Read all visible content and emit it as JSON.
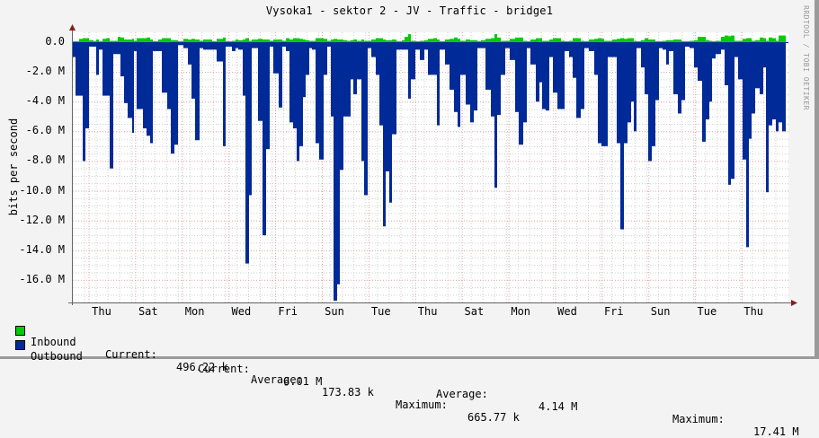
{
  "title": "Vysoka1 - sektor 2 - JV - Traffic - bridge1",
  "watermark": "RRDTOOL / TOBI OETIKER",
  "y_axis_label": "bits per second",
  "colors": {
    "inbound": "#00cc00",
    "outbound": "#002a97",
    "background": "#f3f3f3",
    "canvas": "#ffffff",
    "major_grid": "#e0a0a0",
    "minor_grid": "#cfcfcf",
    "axis": "#666666",
    "arrow": "#8b1a1a"
  },
  "y_ticks": [
    "0.0",
    "-2.0 M",
    "-4.0 M",
    "-6.0 M",
    "-8.0 M",
    "-10.0 M",
    "-12.0 M",
    "-14.0 M",
    "-16.0 M"
  ],
  "x_ticks": [
    "Thu",
    "Sat",
    "Mon",
    "Wed",
    "Fri",
    "Sun",
    "Tue",
    "Thu",
    "Sat",
    "Mon",
    "Wed",
    "Fri",
    "Sun",
    "Tue",
    "Thu"
  ],
  "legend": {
    "inbound": {
      "label": "Inbound",
      "current_label": "Current:",
      "current": "496.22 k",
      "average_label": "Average:",
      "average": "173.83 k",
      "maximum_label": "Maximum:",
      "maximum": "665.77 k"
    },
    "outbound": {
      "label": "Outbound",
      "current_label": "Current:",
      "current": "6.01 M",
      "average_label": "Average:",
      "average": "4.14 M",
      "maximum_label": "Maximum:",
      "maximum": "17.41 M"
    }
  },
  "chart_data": {
    "type": "area",
    "title": "Vysoka1 - sektor 2 - JV - Traffic - bridge1",
    "xlabel": "",
    "ylabel": "bits per second",
    "ylim": [
      -17.41,
      0.7
    ],
    "y_unit": "M bits/s (outbound plotted as negative)",
    "x_tick_labels": [
      "Thu",
      "Sat",
      "Mon",
      "Wed",
      "Fri",
      "Sun",
      "Tue",
      "Thu",
      "Sat",
      "Mon",
      "Wed",
      "Fri",
      "Sun",
      "Tue",
      "Thu"
    ],
    "grid": true,
    "legend_position": "bottom",
    "segments_note": "Each segment: [x_start_px, x_end_px, outbound_M, inbound_M]",
    "series": [
      {
        "name": "Inbound",
        "summary": {
          "current": "496.22 k",
          "average": "173.83 k",
          "maximum": "665.77 k"
        }
      },
      {
        "name": "Outbound",
        "summary": {
          "current": "6.01 M",
          "average": "4.14 M",
          "maximum": "17.41 M"
        }
      }
    ],
    "segments": [
      [
        81,
        84,
        1.0,
        0.05
      ],
      [
        84,
        88,
        3.6,
        0.05
      ],
      [
        88,
        92,
        3.6,
        0.25
      ],
      [
        92,
        95,
        8.0,
        0.3
      ],
      [
        95,
        99,
        5.8,
        0.3
      ],
      [
        99,
        104,
        0.3,
        0.15
      ],
      [
        104,
        107,
        0.3,
        0.05
      ],
      [
        107,
        110,
        2.2,
        0.2
      ],
      [
        110,
        114,
        0.5,
        0.05
      ],
      [
        114,
        118,
        3.6,
        0.25
      ],
      [
        118,
        122,
        3.6,
        0.3
      ],
      [
        122,
        126,
        8.5,
        0.1
      ],
      [
        126,
        131,
        0.8,
        0.1
      ],
      [
        131,
        134,
        0.8,
        0.4
      ],
      [
        134,
        138,
        2.3,
        0.35
      ],
      [
        138,
        142,
        4.1,
        0.2
      ],
      [
        142,
        147,
        5.1,
        0.2
      ],
      [
        147,
        149,
        6.1,
        0.25
      ],
      [
        149,
        152,
        0.6,
        0.1
      ],
      [
        152,
        159,
        4.5,
        0.3
      ],
      [
        159,
        163,
        5.8,
        0.3
      ],
      [
        163,
        167,
        6.3,
        0.35
      ],
      [
        167,
        170,
        6.8,
        0.2
      ],
      [
        170,
        176,
        0.6,
        0.05
      ],
      [
        176,
        180,
        0.6,
        0.2
      ],
      [
        180,
        186,
        3.4,
        0.3
      ],
      [
        186,
        190,
        4.5,
        0.3
      ],
      [
        190,
        194,
        7.5,
        0.15
      ],
      [
        194,
        198,
        6.9,
        0.15
      ],
      [
        198,
        204,
        0.2,
        0.05
      ],
      [
        204,
        209,
        0.4,
        0.25
      ],
      [
        209,
        213,
        1.5,
        0.2
      ],
      [
        213,
        217,
        3.8,
        0.25
      ],
      [
        217,
        222,
        6.6,
        0.2
      ],
      [
        222,
        226,
        0.4,
        0.1
      ],
      [
        226,
        232,
        0.5,
        0.2
      ],
      [
        232,
        236,
        0.5,
        0.2
      ],
      [
        236,
        241,
        0.5,
        0.05
      ],
      [
        241,
        248,
        1.3,
        0.25
      ],
      [
        248,
        251,
        7.0,
        0.35
      ],
      [
        251,
        258,
        0.3,
        0.05
      ],
      [
        258,
        262,
        0.6,
        0.1
      ],
      [
        262,
        265,
        0.4,
        0.2
      ],
      [
        265,
        270,
        0.5,
        0.15
      ],
      [
        270,
        273,
        3.6,
        0.2
      ],
      [
        273,
        277,
        14.9,
        0.3
      ],
      [
        277,
        280,
        10.3,
        0.1
      ],
      [
        280,
        287,
        0.4,
        0.2
      ],
      [
        287,
        292,
        5.3,
        0.25
      ],
      [
        292,
        296,
        13.0,
        0.2
      ],
      [
        296,
        300,
        7.2,
        0.2
      ],
      [
        300,
        304,
        0.3,
        0.1
      ],
      [
        304,
        310,
        2.1,
        0.2
      ],
      [
        310,
        314,
        4.4,
        0.2
      ],
      [
        314,
        318,
        0.3,
        0.1
      ],
      [
        318,
        322,
        0.6,
        0.3
      ],
      [
        322,
        326,
        5.4,
        0.2
      ],
      [
        326,
        330,
        5.8,
        0.3
      ],
      [
        330,
        333,
        8.0,
        0.3
      ],
      [
        333,
        337,
        7.0,
        0.25
      ],
      [
        337,
        340,
        3.7,
        0.2
      ],
      [
        340,
        344,
        2.2,
        0.15
      ],
      [
        344,
        347,
        0.4,
        0.1
      ],
      [
        347,
        351,
        0.5,
        0.1
      ],
      [
        351,
        355,
        6.8,
        0.3
      ],
      [
        355,
        360,
        7.9,
        0.3
      ],
      [
        360,
        364,
        2.2,
        0.25
      ],
      [
        364,
        368,
        0.3,
        0.1
      ],
      [
        368,
        371,
        5.0,
        0.2
      ],
      [
        371,
        375,
        17.4,
        0.25
      ],
      [
        375,
        378,
        16.3,
        0.2
      ],
      [
        378,
        382,
        8.6,
        0.2
      ],
      [
        382,
        386,
        5.0,
        0.15
      ],
      [
        386,
        390,
        5.0,
        0.1
      ],
      [
        390,
        393,
        2.5,
        0.15
      ],
      [
        393,
        397,
        3.5,
        0.2
      ],
      [
        397,
        402,
        2.5,
        0.1
      ],
      [
        402,
        405,
        8.0,
        0.2
      ],
      [
        405,
        409,
        10.3,
        0.1
      ],
      [
        409,
        413,
        0.4,
        0.1
      ],
      [
        413,
        418,
        1.0,
        0.2
      ],
      [
        418,
        422,
        2.2,
        0.3
      ],
      [
        422,
        426,
        5.6,
        0.3
      ],
      [
        426,
        429,
        12.4,
        0.2
      ],
      [
        429,
        433,
        8.7,
        0.15
      ],
      [
        433,
        436,
        10.8,
        0.15
      ],
      [
        436,
        441,
        6.2,
        0.2
      ],
      [
        441,
        447,
        0.5,
        0.05
      ],
      [
        447,
        450,
        0.5,
        0.15
      ],
      [
        450,
        454,
        0.5,
        0.4
      ],
      [
        454,
        457,
        3.8,
        0.6
      ],
      [
        457,
        462,
        2.5,
        0.1
      ],
      [
        462,
        467,
        0.5,
        0.05
      ],
      [
        467,
        472,
        1.2,
        0.1
      ],
      [
        472,
        476,
        0.5,
        0.15
      ],
      [
        476,
        482,
        2.2,
        0.25
      ],
      [
        482,
        486,
        2.2,
        0.3
      ],
      [
        486,
        489,
        5.6,
        0.2
      ],
      [
        489,
        495,
        0.5,
        0.05
      ],
      [
        495,
        500,
        1.5,
        0.2
      ],
      [
        500,
        505,
        3.2,
        0.25
      ],
      [
        505,
        509,
        4.7,
        0.35
      ],
      [
        509,
        512,
        5.7,
        0.25
      ],
      [
        512,
        518,
        2.2,
        0.1
      ],
      [
        518,
        523,
        4.2,
        0.2
      ],
      [
        523,
        527,
        5.4,
        0.15
      ],
      [
        527,
        531,
        4.6,
        0.15
      ],
      [
        531,
        535,
        0.4,
        0.05
      ],
      [
        535,
        540,
        0.4,
        0.15
      ],
      [
        540,
        546,
        3.2,
        0.25
      ],
      [
        546,
        550,
        5.0,
        0.3
      ],
      [
        550,
        553,
        9.8,
        0.6
      ],
      [
        553,
        557,
        4.9,
        0.35
      ],
      [
        557,
        562,
        2.2,
        0.1
      ],
      [
        562,
        567,
        0.4,
        0.1
      ],
      [
        567,
        573,
        1.2,
        0.25
      ],
      [
        573,
        577,
        4.7,
        0.35
      ],
      [
        577,
        582,
        6.9,
        0.35
      ],
      [
        582,
        586,
        5.4,
        0.1
      ],
      [
        586,
        590,
        0.4,
        0.05
      ],
      [
        590,
        596,
        1.5,
        0.2
      ],
      [
        596,
        600,
        4.0,
        0.3
      ],
      [
        600,
        603,
        2.7,
        0.3
      ],
      [
        603,
        607,
        4.5,
        0.1
      ],
      [
        607,
        611,
        4.6,
        0.1
      ],
      [
        611,
        615,
        1.0,
        0.2
      ],
      [
        615,
        620,
        3.4,
        0.3
      ],
      [
        620,
        624,
        4.5,
        0.3
      ],
      [
        624,
        628,
        4.5,
        0.1
      ],
      [
        628,
        633,
        0.6,
        0.05
      ],
      [
        633,
        637,
        1.0,
        0.1
      ],
      [
        637,
        641,
        2.4,
        0.3
      ],
      [
        641,
        646,
        5.1,
        0.3
      ],
      [
        646,
        650,
        4.5,
        0.1
      ],
      [
        650,
        655,
        0.4,
        0.05
      ],
      [
        655,
        661,
        0.6,
        0.2
      ],
      [
        661,
        665,
        2.2,
        0.25
      ],
      [
        665,
        669,
        6.8,
        0.3
      ],
      [
        669,
        672,
        7.0,
        0.25
      ],
      [
        672,
        676,
        7.0,
        0.1
      ],
      [
        676,
        681,
        1.0,
        0.1
      ],
      [
        681,
        686,
        1.0,
        0.2
      ],
      [
        686,
        690,
        6.8,
        0.25
      ],
      [
        690,
        694,
        12.6,
        0.3
      ],
      [
        694,
        698,
        6.8,
        0.25
      ],
      [
        698,
        702,
        5.4,
        0.3
      ],
      [
        702,
        705,
        4.0,
        0.3
      ],
      [
        705,
        708,
        6.0,
        0.1
      ],
      [
        708,
        713,
        0.4,
        0.05
      ],
      [
        713,
        717,
        1.7,
        0.15
      ],
      [
        717,
        721,
        3.5,
        0.3
      ],
      [
        721,
        725,
        8.0,
        0.2
      ],
      [
        725,
        729,
        7.0,
        0.2
      ],
      [
        729,
        733,
        3.9,
        0.05
      ],
      [
        733,
        737,
        0.4,
        0.05
      ],
      [
        737,
        741,
        0.5,
        0.1
      ],
      [
        741,
        744,
        1.5,
        0.15
      ],
      [
        744,
        749,
        0.6,
        0.15
      ],
      [
        749,
        754,
        3.5,
        0.2
      ],
      [
        754,
        758,
        4.8,
        0.2
      ],
      [
        758,
        762,
        3.9,
        0.05
      ],
      [
        762,
        767,
        0.3,
        0.05
      ],
      [
        767,
        772,
        0.4,
        0.1
      ],
      [
        772,
        776,
        1.7,
        0.15
      ],
      [
        776,
        781,
        2.6,
        0.4
      ],
      [
        781,
        785,
        6.7,
        0.4
      ],
      [
        785,
        789,
        5.2,
        0.15
      ],
      [
        789,
        792,
        4.0,
        0.1
      ],
      [
        792,
        796,
        1.1,
        0.05
      ],
      [
        796,
        802,
        0.8,
        0.1
      ],
      [
        802,
        806,
        0.5,
        0.4
      ],
      [
        806,
        810,
        2.9,
        0.5
      ],
      [
        810,
        813,
        9.6,
        0.45
      ],
      [
        813,
        817,
        9.2,
        0.5
      ],
      [
        817,
        821,
        1.0,
        0.1
      ],
      [
        821,
        826,
        2.5,
        0.1
      ],
      [
        826,
        830,
        7.9,
        0.25
      ],
      [
        830,
        833,
        13.8,
        0.3
      ],
      [
        833,
        836,
        6.5,
        0.3
      ],
      [
        836,
        840,
        4.8,
        0.1
      ],
      [
        840,
        845,
        3.1,
        0.15
      ],
      [
        845,
        849,
        3.5,
        0.35
      ],
      [
        849,
        852,
        1.7,
        0.3
      ],
      [
        852,
        855,
        10.1,
        0.1
      ],
      [
        855,
        859,
        5.6,
        0.35
      ],
      [
        859,
        863,
        5.2,
        0.3
      ],
      [
        863,
        866,
        6.0,
        0.1
      ],
      [
        866,
        870,
        5.4,
        0.5
      ],
      [
        870,
        874,
        6.0,
        0.5
      ]
    ]
  }
}
